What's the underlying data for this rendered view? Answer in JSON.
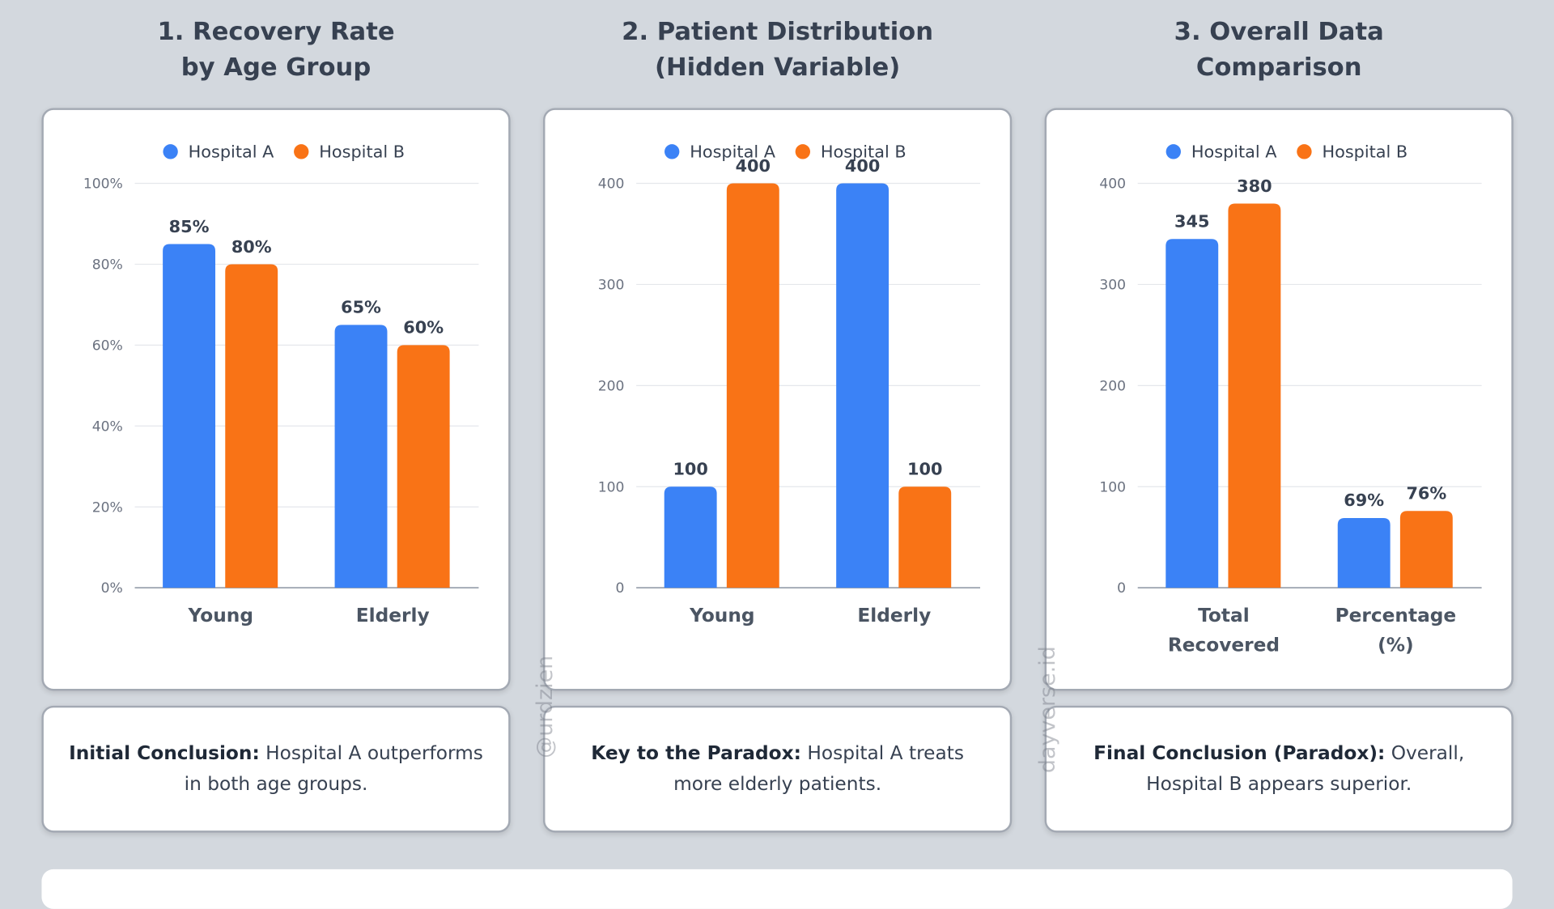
{
  "chart_data": [
    {
      "type": "bar",
      "title": "1. Recovery Rate\nby Age Group",
      "legend": "top",
      "grid": true,
      "categories": [
        "Young",
        "Elderly"
      ],
      "series": [
        {
          "name": "Hospital A",
          "color": "#3b82f6",
          "values": [
            85,
            65
          ],
          "value_labels": [
            "85%",
            "65%"
          ]
        },
        {
          "name": "Hospital B",
          "color": "#f97316",
          "values": [
            80,
            60
          ],
          "value_labels": [
            "80%",
            "60%"
          ]
        }
      ],
      "ylim": [
        0,
        100
      ],
      "yticks": [
        {
          "value": 0,
          "label": "0%"
        },
        {
          "value": 20,
          "label": "20%"
        },
        {
          "value": 40,
          "label": "40%"
        },
        {
          "value": 60,
          "label": "60%"
        },
        {
          "value": 80,
          "label": "80%"
        },
        {
          "value": 100,
          "label": "100%"
        }
      ]
    },
    {
      "type": "bar",
      "title": "2. Patient Distribution\n(Hidden Variable)",
      "legend": "top",
      "grid": true,
      "categories": [
        "Young",
        "Elderly"
      ],
      "series": [
        {
          "name": "Hospital A",
          "color": "#3b82f6",
          "values": [
            100,
            400
          ]
        },
        {
          "name": "Hospital B",
          "color": "#f97316",
          "values": [
            400,
            100
          ]
        }
      ],
      "ylim": [
        0,
        400
      ],
      "yticks": [
        0,
        100,
        200,
        300,
        400
      ]
    },
    {
      "type": "bar",
      "title": "3. Overall Data\nComparison",
      "legend": "top",
      "grid": true,
      "categories": [
        "Total\nRecovered",
        "Percentage\n(%)"
      ],
      "series": [
        {
          "name": "Hospital A",
          "color": "#3b82f6",
          "values": [
            345,
            69
          ],
          "value_labels": [
            "345",
            "69%"
          ]
        },
        {
          "name": "Hospital B",
          "color": "#f97316",
          "values": [
            380,
            76
          ],
          "value_labels": [
            "380",
            "76%"
          ]
        }
      ],
      "ylim": [
        0,
        400
      ],
      "yticks": [
        0,
        100,
        200,
        300,
        400
      ]
    }
  ],
  "conclusions": [
    {
      "lead": "Initial Conclusion:",
      "text": "Hospital A outperforms in both age groups."
    },
    {
      "lead": "Key to the Paradox:",
      "text": "Hospital A treats more elderly patients."
    },
    {
      "lead": "Final Conclusion (Paradox):",
      "text": "Overall, Hospital B appears superior."
    }
  ],
  "watermarks": [
    "@urdzien",
    "dayverse.id"
  ]
}
